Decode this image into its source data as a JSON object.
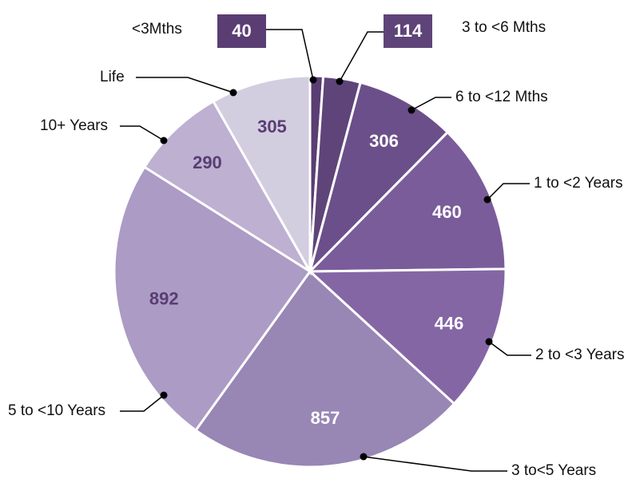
{
  "chart_data": {
    "type": "pie",
    "categories": [
      "<3Mths",
      "3 to <6 Mths",
      "6 to <12 Mths",
      "1 to <2 Years",
      "2 to <3 Years",
      "3 to<5 Years",
      "5 to <10 Years",
      "10+ Years",
      "Life"
    ],
    "values": [
      40,
      114,
      306,
      460,
      446,
      857,
      892,
      290,
      305
    ],
    "colors": [
      "#5a3d73",
      "#5f4479",
      "#6b4f8a",
      "#7a5c9a",
      "#8566a5",
      "#9886b5",
      "#ab9bc5",
      "#bdb0d1",
      "#d3cde0"
    ]
  }
}
